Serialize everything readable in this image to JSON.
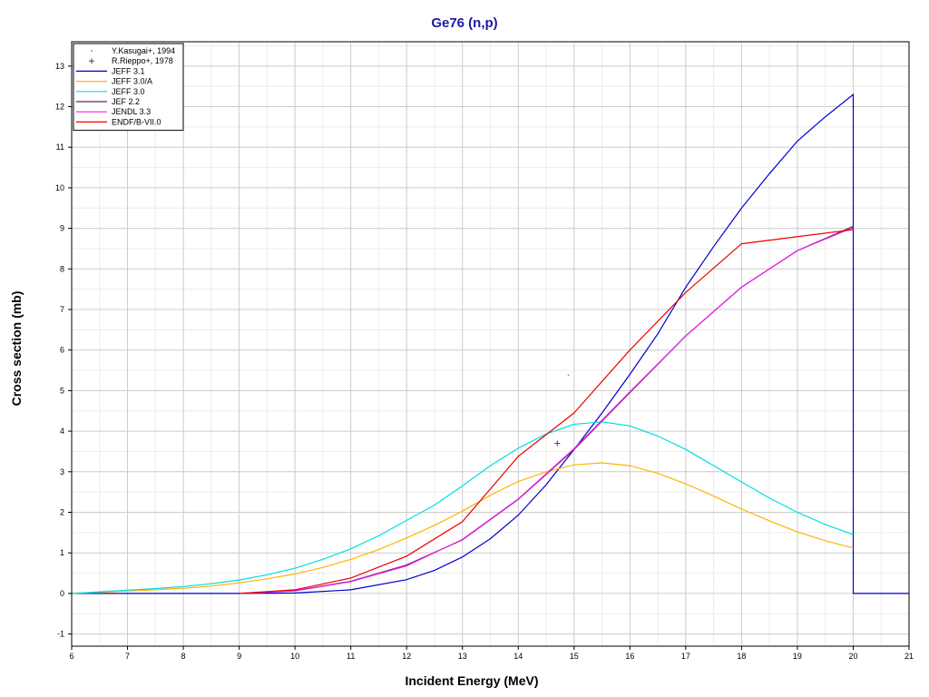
{
  "chart_data": {
    "type": "line",
    "title": "Ge76 (n,p)",
    "xlabel": "Incident Energy (MeV)",
    "ylabel": "Cross section (mb)",
    "xlim": [
      6,
      21
    ],
    "ylim": [
      -1.3,
      13.6
    ],
    "x_ticks": [
      6,
      7,
      8,
      9,
      10,
      11,
      12,
      13,
      14,
      15,
      16,
      17,
      18,
      19,
      20,
      21
    ],
    "y_ticks": [
      -1,
      0,
      1,
      2,
      3,
      4,
      5,
      6,
      7,
      8,
      9,
      10,
      11,
      12,
      13
    ],
    "grid": true,
    "legend_position": "top-left",
    "series": [
      {
        "name": "Y.Kasugai+, 1994",
        "kind": "points",
        "marker": "dot",
        "color": "#9a9a9a",
        "x": [
          14.6,
          14.9
        ],
        "y": [
          3.05,
          5.38
        ]
      },
      {
        "name": "R.Rieppo+, 1978",
        "kind": "points",
        "marker": "plus",
        "color": "#404080",
        "x": [
          14.7
        ],
        "y": [
          3.7
        ]
      },
      {
        "name": "JEFF 3.1",
        "kind": "line",
        "color": "#0000cc",
        "x": [
          6,
          7,
          8,
          9,
          10,
          11,
          12,
          12.5,
          13,
          13.5,
          14,
          14.5,
          15,
          15.5,
          16,
          16.5,
          17,
          17.5,
          18,
          18.5,
          19,
          19.5,
          20,
          20,
          21
        ],
        "y": [
          0,
          0,
          0,
          0,
          0.01,
          0.09,
          0.34,
          0.57,
          0.9,
          1.35,
          1.93,
          2.68,
          3.55,
          4.45,
          5.4,
          6.4,
          7.55,
          8.55,
          9.5,
          10.35,
          11.15,
          11.75,
          12.3,
          0,
          0
        ]
      },
      {
        "name": "JEFF 3.0/A",
        "kind": "line",
        "color": "#ffb400",
        "x": [
          6,
          6.5,
          7,
          7.5,
          8,
          8.5,
          9,
          9.5,
          10,
          10.5,
          11,
          11.5,
          12,
          12.5,
          13,
          13.5,
          14,
          14.5,
          15,
          15.5,
          16,
          16.5,
          17,
          17.5,
          18,
          18.5,
          19,
          19.5,
          20
        ],
        "y": [
          0,
          0.03,
          0.06,
          0.09,
          0.13,
          0.18,
          0.26,
          0.36,
          0.48,
          0.64,
          0.84,
          1.08,
          1.37,
          1.68,
          2.03,
          2.42,
          2.76,
          3.0,
          3.17,
          3.22,
          3.15,
          2.96,
          2.7,
          2.4,
          2.08,
          1.79,
          1.52,
          1.3,
          1.12
        ]
      },
      {
        "name": "JEFF 3.0",
        "kind": "line",
        "color": "#00dddd",
        "x": [
          6,
          6.5,
          7,
          7.5,
          8,
          8.5,
          9,
          9.5,
          10,
          10.5,
          11,
          11.5,
          12,
          12.5,
          13,
          13.5,
          14,
          14.5,
          15,
          15.5,
          16,
          16.5,
          17,
          17.5,
          18,
          18.5,
          19,
          19.5,
          20
        ],
        "y": [
          0,
          0.04,
          0.08,
          0.12,
          0.17,
          0.24,
          0.33,
          0.46,
          0.62,
          0.84,
          1.1,
          1.42,
          1.8,
          2.18,
          2.65,
          3.15,
          3.58,
          3.93,
          4.17,
          4.23,
          4.13,
          3.88,
          3.55,
          3.15,
          2.75,
          2.35,
          2.0,
          1.7,
          1.45
        ]
      },
      {
        "name": "JEF 2.2",
        "kind": "line",
        "color": "#6a1a6a",
        "x": [
          9,
          10,
          11,
          12,
          13,
          14,
          15,
          16,
          17,
          18,
          19,
          20
        ],
        "y": [
          0,
          0.07,
          0.3,
          0.7,
          1.32,
          2.32,
          3.55,
          4.95,
          6.35,
          7.55,
          8.45,
          9.05
        ]
      },
      {
        "name": "JENDL 3.3",
        "kind": "line",
        "color": "#ee22ee",
        "x": [
          9,
          10,
          11,
          12,
          13,
          14,
          15,
          16,
          17,
          18,
          19,
          20
        ],
        "y": [
          0,
          0.06,
          0.29,
          0.68,
          1.33,
          2.33,
          3.57,
          4.97,
          6.35,
          7.55,
          8.45,
          9.02
        ]
      },
      {
        "name": "ENDF/B-VII.0",
        "kind": "line",
        "color": "#ee0000",
        "x": [
          9,
          10,
          11,
          12,
          13,
          14,
          15,
          16,
          17,
          18,
          20
        ],
        "y": [
          0,
          0.09,
          0.38,
          0.92,
          1.77,
          3.38,
          4.45,
          6.0,
          7.42,
          8.62,
          8.97
        ]
      }
    ]
  }
}
